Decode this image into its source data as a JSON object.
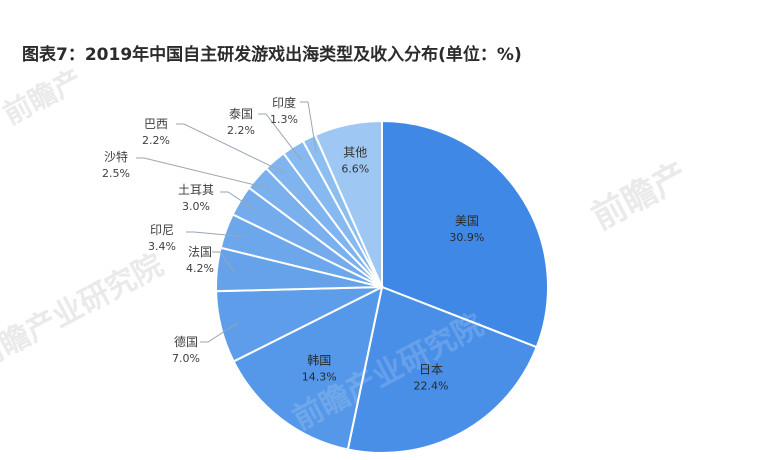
{
  "chart_data": {
    "type": "pie",
    "title": "图表7：2019年中国自主研发游戏出海类型及收入分布(单位：%)",
    "slices": [
      {
        "label": "美国",
        "value": 30.9,
        "value_label": "30.9%",
        "color": "#3f88e6"
      },
      {
        "label": "日本",
        "value": 22.4,
        "value_label": "22.4%",
        "color": "#4a8fe7"
      },
      {
        "label": "韩国",
        "value": 14.3,
        "value_label": "14.3%",
        "color": "#5597e8"
      },
      {
        "label": "德国",
        "value": 7.0,
        "value_label": "7.0%",
        "color": "#5e9de9"
      },
      {
        "label": "法国",
        "value": 4.2,
        "value_label": "4.2%",
        "color": "#65a2ea"
      },
      {
        "label": "印尼",
        "value": 3.4,
        "value_label": "3.4%",
        "color": "#6ca7eb"
      },
      {
        "label": "土耳其",
        "value": 3.0,
        "value_label": "3.0%",
        "color": "#73abec"
      },
      {
        "label": "沙特",
        "value": 2.5,
        "value_label": "2.5%",
        "color": "#79b0ed"
      },
      {
        "label": "巴西",
        "value": 2.2,
        "value_label": "2.2%",
        "color": "#7fb4ee"
      },
      {
        "label": "泰国",
        "value": 2.2,
        "value_label": "2.2%",
        "color": "#86b9ef"
      },
      {
        "label": "印度",
        "value": 1.3,
        "value_label": "1.3%",
        "color": "#8dbef0"
      },
      {
        "label": "其他",
        "value": 6.6,
        "value_label": "6.6%",
        "color": "#9ec8f3"
      }
    ]
  },
  "watermark": {
    "brand": "前瞻产业研究院",
    "short": "前瞻产"
  }
}
